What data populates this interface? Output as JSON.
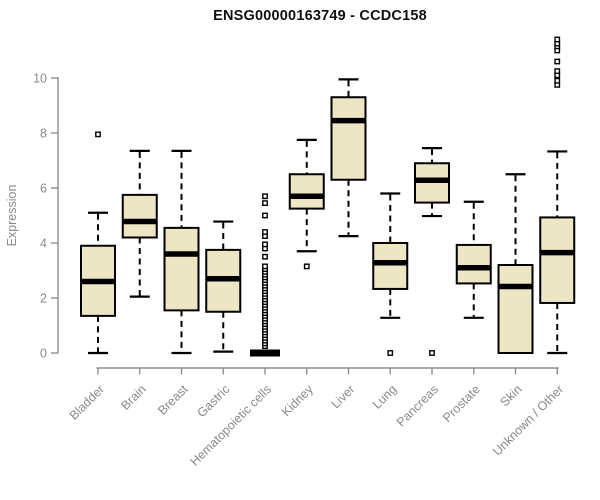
{
  "title": "ENSG00000163749 - CCDC158",
  "chart_data": {
    "type": "boxplot",
    "title": "ENSG00000163749 - CCDC158",
    "xlabel": "",
    "ylabel": "Expression",
    "ylim": [
      0,
      10
    ],
    "yticks": [
      0,
      2,
      4,
      6,
      8,
      10
    ],
    "grid": false,
    "legend": "none",
    "box_fill_color": "#ECE6C4",
    "box_stroke_color": "#000000",
    "axis_color": "#8F8F8F",
    "tick_label_color": "#8A8A8A",
    "title_color": "#111111",
    "categories": [
      "Bladder",
      "Brain",
      "Breast",
      "Gastric",
      "Hematopoietic cells",
      "Kidney",
      "Liver",
      "Lung",
      "Pancreas",
      "Prostate",
      "Skin",
      "Unknown / Other"
    ],
    "series": [
      {
        "category": "Bladder",
        "low": 0.0,
        "q1": 1.35,
        "median": 2.6,
        "q3": 3.9,
        "high": 5.1,
        "outliers": [
          7.95
        ]
      },
      {
        "category": "Brain",
        "low": 2.05,
        "q1": 4.2,
        "median": 4.78,
        "q3": 5.75,
        "high": 7.35,
        "outliers": []
      },
      {
        "category": "Breast",
        "low": 0.0,
        "q1": 1.55,
        "median": 3.6,
        "q3": 4.55,
        "high": 7.35,
        "outliers": []
      },
      {
        "category": "Gastric",
        "low": 0.05,
        "q1": 1.5,
        "median": 2.7,
        "q3": 3.75,
        "high": 4.78,
        "outliers": []
      },
      {
        "category": "Hematopoietic cells",
        "low": 0.0,
        "q1": 0.0,
        "median": 0.0,
        "q3": 0.0,
        "high": 0.0,
        "outliers": [
          0.25,
          0.35,
          0.45,
          0.55,
          0.65,
          0.75,
          0.85,
          0.95,
          1.05,
          1.15,
          1.25,
          1.35,
          1.45,
          1.55,
          1.65,
          1.75,
          1.85,
          1.95,
          2.05,
          2.15,
          2.25,
          2.35,
          2.45,
          2.55,
          2.65,
          2.75,
          2.85,
          2.95,
          3.05,
          3.15,
          3.5,
          3.8,
          3.95,
          4.25,
          4.4,
          5.0,
          5.45,
          5.7
        ]
      },
      {
        "category": "Kidney",
        "low": 3.7,
        "q1": 5.25,
        "median": 5.7,
        "q3": 6.5,
        "high": 7.75,
        "outliers": [
          3.15
        ]
      },
      {
        "category": "Liver",
        "low": 4.25,
        "q1": 6.3,
        "median": 8.45,
        "q3": 9.3,
        "high": 9.95,
        "outliers": []
      },
      {
        "category": "Lung",
        "low": 1.28,
        "q1": 2.33,
        "median": 3.28,
        "q3": 4.0,
        "high": 5.8,
        "outliers": [
          0.0
        ]
      },
      {
        "category": "Pancreas",
        "low": 4.98,
        "q1": 5.47,
        "median": 6.28,
        "q3": 6.9,
        "high": 7.45,
        "outliers": [
          0.0
        ]
      },
      {
        "category": "Prostate",
        "low": 1.28,
        "q1": 2.53,
        "median": 3.1,
        "q3": 3.93,
        "high": 5.5,
        "outliers": []
      },
      {
        "category": "Skin",
        "low": 0.0,
        "q1": 0.0,
        "median": 2.42,
        "q3": 3.2,
        "high": 6.5,
        "outliers": []
      },
      {
        "category": "Unknown / Other",
        "low": 0.0,
        "q1": 1.82,
        "median": 3.65,
        "q3": 4.93,
        "high": 7.33,
        "outliers": [
          9.75,
          9.9,
          10.1,
          10.25,
          10.6,
          11.0,
          11.15,
          11.25,
          11.4
        ]
      }
    ]
  }
}
